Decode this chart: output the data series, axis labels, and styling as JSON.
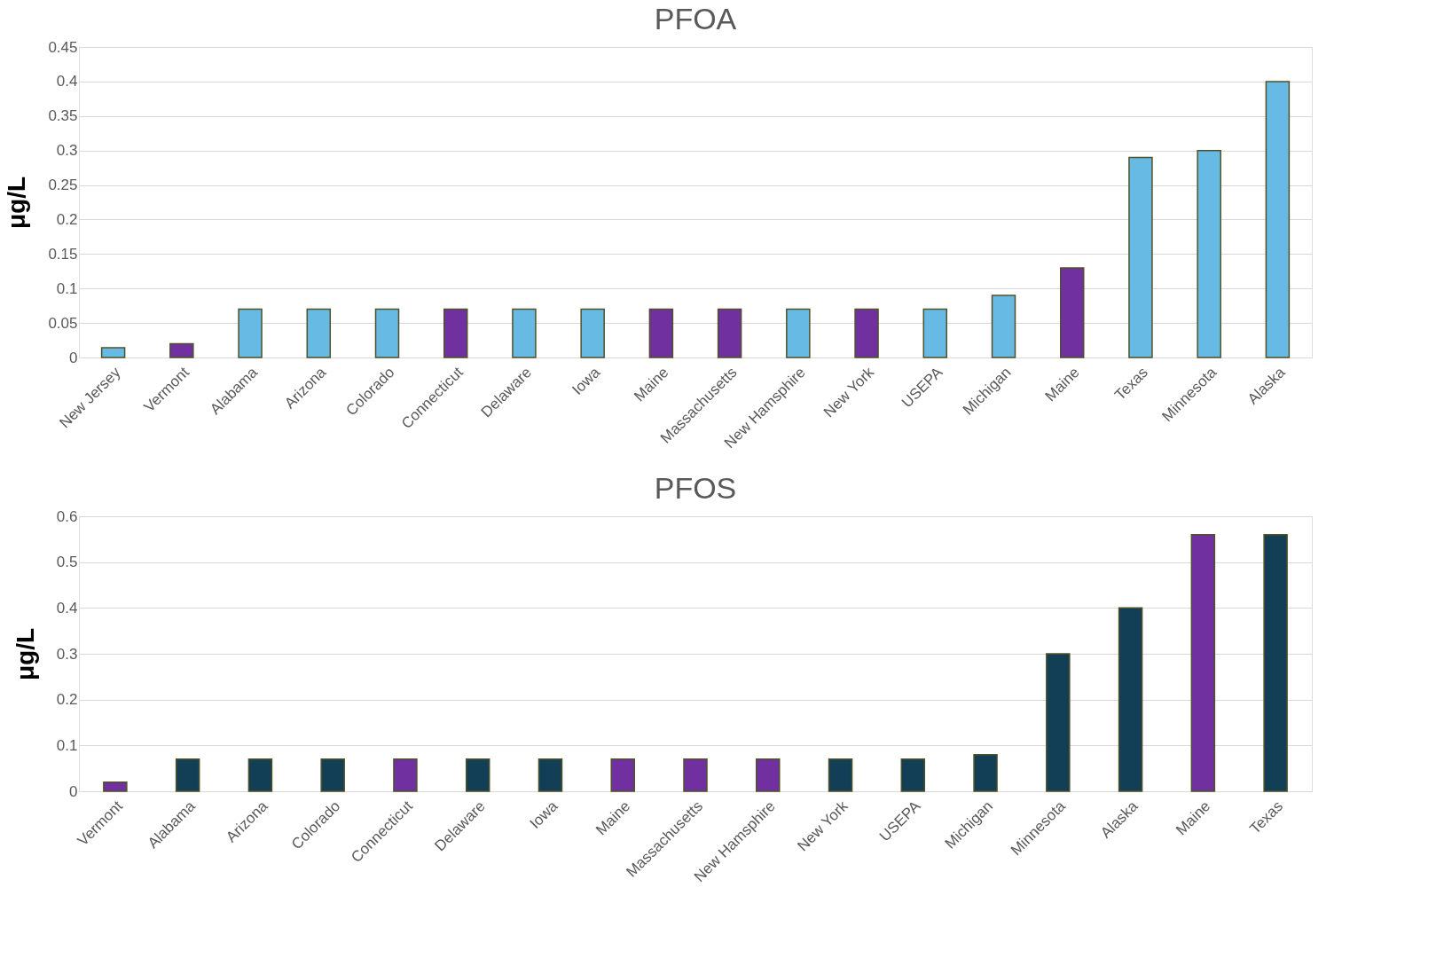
{
  "chart_data": [
    {
      "type": "bar",
      "title": "PFOA",
      "ylabel": "μg/L",
      "categories": [
        "New Jersey",
        "Vermont",
        "Alabama",
        "Arizona",
        "Colorado",
        "Connecticut",
        "Delaware",
        "Iowa",
        "Maine",
        "Massachusetts",
        "New Hamsphire",
        "New York",
        "USEPA",
        "Michigan",
        "Maine",
        "Texas",
        "Minnesota",
        "Alaska"
      ],
      "values": [
        0.014,
        0.02,
        0.07,
        0.07,
        0.07,
        0.07,
        0.07,
        0.07,
        0.07,
        0.07,
        0.07,
        0.07,
        0.07,
        0.09,
        0.13,
        0.29,
        0.3,
        0.4
      ],
      "colors": [
        "#67bae3",
        "#7030a0",
        "#67bae3",
        "#67bae3",
        "#67bae3",
        "#7030a0",
        "#67bae3",
        "#67bae3",
        "#7030a0",
        "#7030a0",
        "#67bae3",
        "#7030a0",
        "#67bae3",
        "#67bae3",
        "#7030a0",
        "#67bae3",
        "#67bae3",
        "#67bae3"
      ],
      "ylim": [
        0,
        0.45
      ],
      "yticks": [
        0,
        0.05,
        0.1,
        0.15,
        0.2,
        0.25,
        0.3,
        0.35,
        0.4,
        0.45
      ],
      "grid": "y"
    },
    {
      "type": "bar",
      "title": "PFOS",
      "ylabel": "μg/L",
      "categories": [
        "Vermont",
        "Alabama",
        "Arizona",
        "Colorado",
        "Connecticut",
        "Delaware",
        "Iowa",
        "Maine",
        "Massachusetts",
        "New Hamsphire",
        "New York",
        "USEPA",
        "Michigan",
        "Minnesota",
        "Alaska",
        "Maine",
        "Texas"
      ],
      "values": [
        0.02,
        0.07,
        0.07,
        0.07,
        0.07,
        0.07,
        0.07,
        0.07,
        0.07,
        0.07,
        0.07,
        0.07,
        0.08,
        0.3,
        0.4,
        0.56,
        0.56
      ],
      "colors": [
        "#7030a0",
        "#123f56",
        "#123f56",
        "#123f56",
        "#7030a0",
        "#123f56",
        "#123f56",
        "#7030a0",
        "#7030a0",
        "#7030a0",
        "#123f56",
        "#123f56",
        "#123f56",
        "#123f56",
        "#123f56",
        "#7030a0",
        "#123f56"
      ],
      "ylim": [
        0,
        0.6
      ],
      "yticks": [
        0,
        0.1,
        0.2,
        0.3,
        0.4,
        0.5,
        0.6
      ],
      "grid": "y"
    }
  ]
}
